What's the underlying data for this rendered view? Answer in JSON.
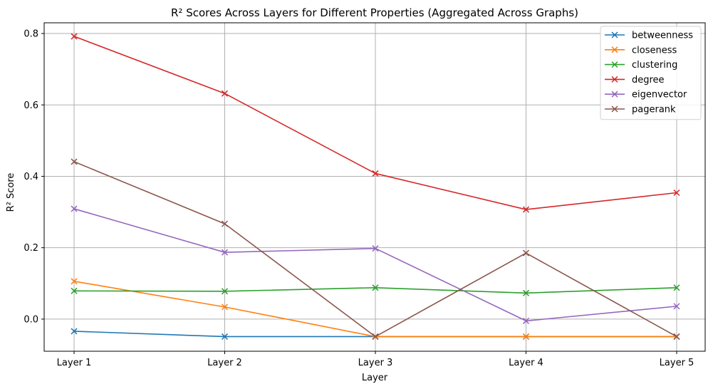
{
  "chart_data": {
    "type": "line",
    "title": "R² Scores Across Layers for Different Properties (Aggregated Across Graphs)",
    "xlabel": "Layer",
    "ylabel": "R² Score",
    "categories": [
      "Layer 1",
      "Layer 2",
      "Layer 3",
      "Layer 4",
      "Layer 5"
    ],
    "ylim": [
      -0.09,
      0.83
    ],
    "yticks": [
      0.0,
      0.2,
      0.4,
      0.6,
      0.8
    ],
    "ytick_labels": [
      "0.0",
      "0.2",
      "0.4",
      "0.6",
      "0.8"
    ],
    "grid": true,
    "legend_position": "top-right",
    "marker": "x",
    "series": [
      {
        "name": "betweenness",
        "color": "#1f77b4",
        "values": [
          -0.034,
          -0.049,
          -0.049,
          -0.049,
          -0.049
        ]
      },
      {
        "name": "closeness",
        "color": "#ff7f0e",
        "values": [
          0.106,
          0.034,
          -0.049,
          -0.049,
          -0.049
        ]
      },
      {
        "name": "clustering",
        "color": "#2ca02c",
        "values": [
          0.079,
          0.078,
          0.088,
          0.073,
          0.088
        ]
      },
      {
        "name": "degree",
        "color": "#d62728",
        "values": [
          0.792,
          0.632,
          0.408,
          0.307,
          0.354
        ]
      },
      {
        "name": "eigenvector",
        "color": "#9467bd",
        "values": [
          0.309,
          0.187,
          0.198,
          -0.005,
          0.036
        ]
      },
      {
        "name": "pagerank",
        "color": "#8c564b",
        "values": [
          0.441,
          0.267,
          -0.049,
          0.185,
          -0.049
        ]
      }
    ]
  }
}
